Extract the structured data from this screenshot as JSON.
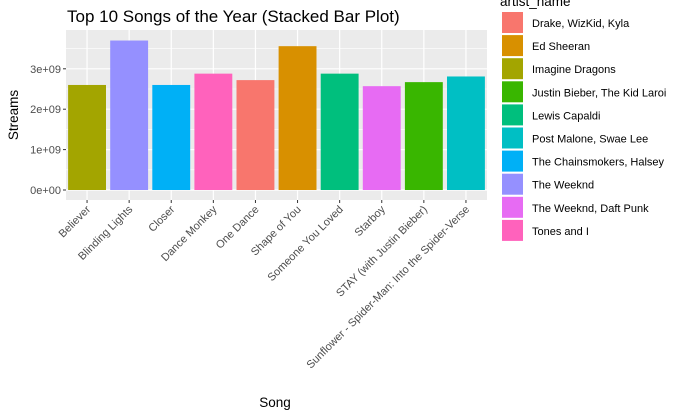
{
  "chart_data": {
    "type": "bar",
    "title": "Top 10 Songs of the Year (Stacked Bar Plot)",
    "xlabel": "Song",
    "ylabel": "Streams",
    "ylim": [
      0,
      3800000000
    ],
    "yticks": [
      0,
      1000000000,
      2000000000,
      3000000000
    ],
    "ytick_labels": [
      "0e+00",
      "1e+09",
      "2e+09",
      "3e+09"
    ],
    "grid": true,
    "legend_position": "right",
    "legend_title": "artist_name",
    "categories": [
      "Believer",
      "Blinding Lights",
      "Closer",
      "Dance Monkey",
      "One Dance",
      "Shape of You",
      "Someone You Loved",
      "Starboy",
      "STAY (with Justin Bieber)",
      "Sunflower - Spider-Man: Into the Spider-Verse"
    ],
    "values": [
      2600000000,
      3700000000,
      2600000000,
      2880000000,
      2720000000,
      3560000000,
      2880000000,
      2570000000,
      2670000000,
      2810000000
    ],
    "bar_artists": [
      "Imagine Dragons",
      "The Weeknd",
      "The Chainsmokers, Halsey",
      "Tones and I",
      "Drake, WizKid, Kyla",
      "Ed Sheeran",
      "Lewis Capaldi",
      "The Weeknd, Daft Punk",
      "Justin Bieber, The Kid Laroi",
      "Post Malone, Swae Lee"
    ],
    "series": [
      {
        "name": "Drake, WizKid, Kyla",
        "color": "#F8766D"
      },
      {
        "name": "Ed Sheeran",
        "color": "#D89000"
      },
      {
        "name": "Imagine Dragons",
        "color": "#A3A500"
      },
      {
        "name": "Justin Bieber, The Kid Laroi",
        "color": "#39B600"
      },
      {
        "name": "Lewis Capaldi",
        "color": "#00BF7D"
      },
      {
        "name": "Post Malone, Swae Lee",
        "color": "#00BFC4"
      },
      {
        "name": "The Chainsmokers, Halsey",
        "color": "#00B0F6"
      },
      {
        "name": "The Weeknd",
        "color": "#9590FF"
      },
      {
        "name": "The Weeknd, Daft Punk",
        "color": "#E76BF3"
      },
      {
        "name": "Tones and I",
        "color": "#FF62BC"
      }
    ]
  }
}
